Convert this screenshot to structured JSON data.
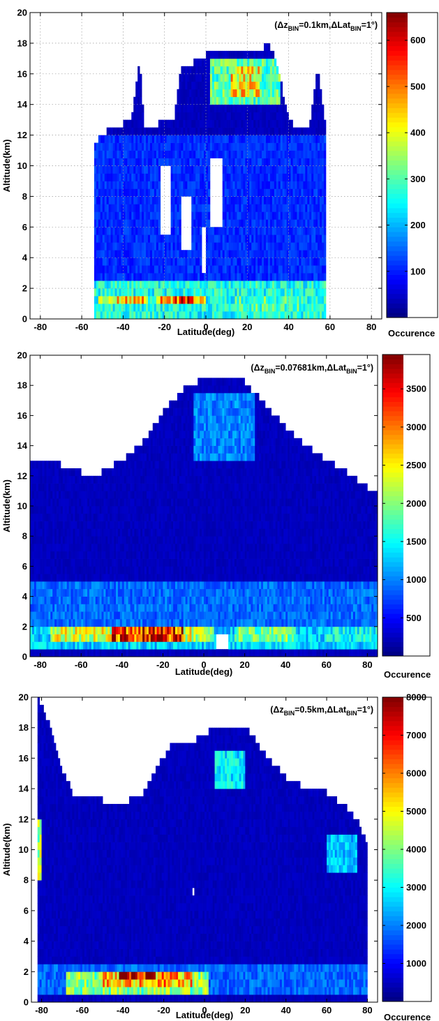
{
  "chart_data": [
    {
      "type": "heatmap",
      "annotation": {
        "dz_label": "(Δz",
        "dz_sub": "BIN",
        "dz_value": "=0.1km,ΔLat",
        "lat_sub": "BIN",
        "lat_value": "=1°)"
      },
      "xlabel": "Latitude(deg)",
      "ylabel": "Altitude(km)",
      "xlim": [
        -85,
        85
      ],
      "ylim": [
        0,
        20
      ],
      "xticks": [
        -80,
        -60,
        -40,
        -20,
        0,
        20,
        40,
        60,
        80
      ],
      "yticks": [
        0,
        2,
        4,
        6,
        8,
        10,
        12,
        14,
        16,
        18,
        20
      ],
      "grid": true,
      "colorbar": {
        "label": "Occurence",
        "min": 0,
        "max": 660,
        "ticks": [
          100,
          200,
          300,
          400,
          500,
          600
        ]
      },
      "bin_km": 0.1,
      "bin_deg": 1,
      "profile_top": [
        {
          "lat": -54,
          "top": 11.0
        },
        {
          "lat": -52,
          "top": 11.5
        },
        {
          "lat": -48,
          "top": 12.0
        },
        {
          "lat": -44,
          "top": 12.2
        },
        {
          "lat": -40,
          "top": 12.5
        },
        {
          "lat": -36,
          "top": 13.0
        },
        {
          "lat": -32,
          "top": 17.0
        },
        {
          "lat": -30,
          "top": 12.5
        },
        {
          "lat": -24,
          "top": 12.3
        },
        {
          "lat": -20,
          "top": 13.0
        },
        {
          "lat": -16,
          "top": 12.5
        },
        {
          "lat": -12,
          "top": 16.0
        },
        {
          "lat": -6,
          "top": 16.5
        },
        {
          "lat": 0,
          "top": 17.0
        },
        {
          "lat": 10,
          "top": 17.2
        },
        {
          "lat": 20,
          "top": 17.5
        },
        {
          "lat": 26,
          "top": 17.2
        },
        {
          "lat": 30,
          "top": 18.0
        },
        {
          "lat": 34,
          "top": 16.5
        },
        {
          "lat": 40,
          "top": 13.0
        },
        {
          "lat": 44,
          "top": 12.0
        },
        {
          "lat": 50,
          "top": 12.5
        },
        {
          "lat": 54,
          "top": 16.5
        },
        {
          "lat": 58,
          "top": 12.0
        }
      ],
      "features": [
        {
          "lat_from": -54,
          "lat_to": 58,
          "alt_from": 0,
          "alt_to": 2.5,
          "level": 260
        },
        {
          "lat_from": -52,
          "lat_to": -28,
          "alt_from": 0.9,
          "alt_to": 1.6,
          "level": 430
        },
        {
          "lat_from": -24,
          "lat_to": 0,
          "alt_from": 0.9,
          "alt_to": 1.6,
          "level": 500
        },
        {
          "lat_from": -12,
          "lat_to": -6,
          "alt_from": 1.0,
          "alt_to": 1.5,
          "level": 620
        },
        {
          "lat_from": 14,
          "lat_to": 46,
          "alt_from": 0.6,
          "alt_to": 1.6,
          "level": 300
        },
        {
          "lat_from": 2,
          "lat_to": 36,
          "alt_from": 14.0,
          "alt_to": 17.0,
          "level": 300
        },
        {
          "lat_from": 12,
          "lat_to": 26,
          "alt_from": 14.5,
          "alt_to": 16.5,
          "level": 420
        },
        {
          "lat_from": -54,
          "lat_to": 58,
          "alt_from": 2.5,
          "alt_to": 12.0,
          "level": 110
        }
      ],
      "holes": [
        {
          "lat_from": -22,
          "lat_to": -17,
          "alt_from": 5.5,
          "alt_to": 10.0
        },
        {
          "lat_from": -12,
          "lat_to": -7,
          "alt_from": 4.5,
          "alt_to": 8.0
        },
        {
          "lat_from": 2,
          "lat_to": 8,
          "alt_from": 6.0,
          "alt_to": 10.5
        },
        {
          "lat_from": -2,
          "lat_to": 0,
          "alt_from": 3.0,
          "alt_to": 6.0
        }
      ]
    },
    {
      "type": "heatmap",
      "annotation": {
        "dz_label": "(Δz",
        "dz_sub": "BIN",
        "dz_value": "=0.07681km,ΔLat",
        "lat_sub": "BIN",
        "lat_value": "=1°)"
      },
      "xlabel": "Latitude(deg)",
      "ylabel": "Altitude(km)",
      "xlim": [
        -85,
        85
      ],
      "ylim": [
        0,
        20
      ],
      "xticks": [
        -80,
        -60,
        -40,
        -20,
        0,
        20,
        40,
        60,
        80
      ],
      "yticks": [
        0,
        2,
        4,
        6,
        8,
        10,
        12,
        14,
        16,
        18,
        20
      ],
      "grid": false,
      "colorbar": {
        "label": "Occurence",
        "min": 0,
        "max": 3950,
        "ticks": [
          500,
          1000,
          1500,
          2000,
          2500,
          3000,
          3500
        ]
      },
      "bin_km": 0.07681,
      "bin_deg": 1,
      "profile_top": [
        {
          "lat": -85,
          "top": 13.0
        },
        {
          "lat": -70,
          "top": 12.5
        },
        {
          "lat": -60,
          "top": 12.0
        },
        {
          "lat": -50,
          "top": 12.0
        },
        {
          "lat": -40,
          "top": 12.8
        },
        {
          "lat": -30,
          "top": 14.0
        },
        {
          "lat": -20,
          "top": 16.0
        },
        {
          "lat": -10,
          "top": 17.5
        },
        {
          "lat": 0,
          "top": 18.2
        },
        {
          "lat": 10,
          "top": 18.5
        },
        {
          "lat": 20,
          "top": 18.0
        },
        {
          "lat": 30,
          "top": 16.5
        },
        {
          "lat": 40,
          "top": 15.0
        },
        {
          "lat": 50,
          "top": 13.8
        },
        {
          "lat": 60,
          "top": 12.8
        },
        {
          "lat": 70,
          "top": 12.0
        },
        {
          "lat": 80,
          "top": 11.0
        },
        {
          "lat": 85,
          "top": 10.5
        }
      ],
      "features": [
        {
          "lat_from": -85,
          "lat_to": 85,
          "alt_from": 0.4,
          "alt_to": 2.2,
          "level": 1300
        },
        {
          "lat_from": -85,
          "lat_to": 85,
          "alt_from": 2.2,
          "alt_to": 5.0,
          "level": 900
        },
        {
          "lat_from": -75,
          "lat_to": 5,
          "alt_from": 0.8,
          "alt_to": 2.0,
          "level": 2300
        },
        {
          "lat_from": -45,
          "lat_to": -10,
          "alt_from": 1.0,
          "alt_to": 1.8,
          "level": 3300
        },
        {
          "lat_from": -32,
          "lat_to": -20,
          "alt_from": 1.1,
          "alt_to": 1.7,
          "level": 3700
        },
        {
          "lat_from": 15,
          "lat_to": 45,
          "alt_from": 0.9,
          "alt_to": 1.9,
          "level": 1900
        },
        {
          "lat_from": -5,
          "lat_to": 25,
          "alt_from": 13.0,
          "alt_to": 17.5,
          "level": 1000
        },
        {
          "lat_from": 60,
          "lat_to": 85,
          "alt_from": 0.8,
          "alt_to": 1.8,
          "level": 1500
        }
      ],
      "holes": [
        {
          "lat_from": 6,
          "lat_to": 12,
          "alt_from": 0.3,
          "alt_to": 1.6
        }
      ]
    },
    {
      "type": "heatmap",
      "annotation": {
        "dz_label": "(Δz",
        "dz_sub": "BIN",
        "dz_value": "=0.5km,ΔLat",
        "lat_sub": "BIN",
        "lat_value": "=1°)"
      },
      "xlabel": "Latitude(deg)",
      "ylabel": "Altitude(km)",
      "xlim": [
        -85,
        85
      ],
      "ylim": [
        0,
        20
      ],
      "xticks": [
        -80,
        -60,
        -40,
        -20,
        0,
        20,
        40,
        60,
        80
      ],
      "yticks": [
        0,
        2,
        4,
        6,
        8,
        10,
        12,
        14,
        16,
        18,
        20
      ],
      "grid": false,
      "colorbar": {
        "label": "Occurence",
        "min": 0,
        "max": 8000,
        "ticks": [
          1000,
          2000,
          3000,
          4000,
          5000,
          6000,
          7000,
          8000
        ]
      },
      "bin_km": 0.5,
      "bin_deg": 1,
      "profile_top": [
        {
          "lat": -82,
          "top": 20.0
        },
        {
          "lat": -76,
          "top": 18.0
        },
        {
          "lat": -70,
          "top": 15.0
        },
        {
          "lat": -64,
          "top": 13.3
        },
        {
          "lat": -50,
          "top": 13.0
        },
        {
          "lat": -40,
          "top": 12.8
        },
        {
          "lat": -30,
          "top": 13.5
        },
        {
          "lat": -22,
          "top": 15.5
        },
        {
          "lat": -16,
          "top": 16.7
        },
        {
          "lat": -4,
          "top": 17.0
        },
        {
          "lat": 6,
          "top": 17.8
        },
        {
          "lat": 20,
          "top": 18.0
        },
        {
          "lat": 30,
          "top": 16.0
        },
        {
          "lat": 40,
          "top": 14.5
        },
        {
          "lat": 50,
          "top": 13.8
        },
        {
          "lat": 60,
          "top": 13.5
        },
        {
          "lat": 70,
          "top": 12.5
        },
        {
          "lat": 76,
          "top": 11.5
        },
        {
          "lat": 80,
          "top": 10.0
        }
      ],
      "features": [
        {
          "lat_from": -82,
          "lat_to": 80,
          "alt_from": 0.5,
          "alt_to": 2.5,
          "level": 1800
        },
        {
          "lat_from": -68,
          "lat_to": 2,
          "alt_from": 0.5,
          "alt_to": 2.0,
          "level": 4000
        },
        {
          "lat_from": -50,
          "lat_to": -6,
          "alt_from": 1.0,
          "alt_to": 2.0,
          "level": 5600
        },
        {
          "lat_from": -42,
          "lat_to": -24,
          "alt_from": 1.5,
          "alt_to": 2.0,
          "level": 7500
        },
        {
          "lat_from": 5,
          "lat_to": 20,
          "alt_from": 14.0,
          "alt_to": 16.5,
          "level": 2800
        },
        {
          "lat_from": 60,
          "lat_to": 75,
          "alt_from": 8.5,
          "alt_to": 11.0,
          "level": 2500
        },
        {
          "lat_from": -82,
          "lat_to": -80,
          "alt_from": 8.0,
          "alt_to": 12.0,
          "level": 4200
        }
      ],
      "holes": [
        {
          "lat_from": -6,
          "lat_to": -5,
          "alt_from": 7.0,
          "alt_to": 7.5
        }
      ]
    }
  ]
}
